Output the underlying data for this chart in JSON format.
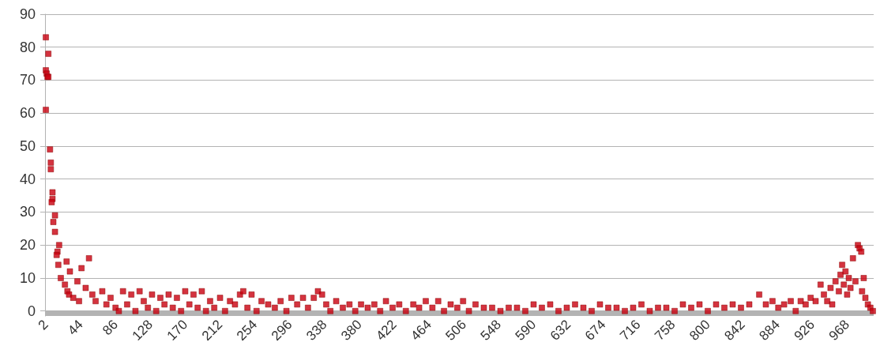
{
  "chart_data": {
    "type": "scatter",
    "marker": "square",
    "grid": "y",
    "xlim": [
      1,
      1000
    ],
    "xticks": [
      2,
      44,
      86,
      128,
      170,
      212,
      254,
      296,
      338,
      380,
      422,
      464,
      506,
      548,
      590,
      632,
      674,
      716,
      758,
      800,
      842,
      884,
      926,
      968
    ],
    "ylim": [
      -1.5,
      90
    ],
    "yticks": [
      0,
      10,
      20,
      30,
      40,
      50,
      60,
      70,
      80,
      90
    ],
    "bands": [
      {
        "axis": "y",
        "from": -1.5,
        "to": 0,
        "color": "#b3b3b3"
      }
    ],
    "series": [
      {
        "color": "#c9000f",
        "x": [
          2,
          2,
          2,
          3,
          4,
          5,
          5,
          7,
          8,
          8,
          10,
          10,
          9,
          13,
          11,
          13,
          18,
          16,
          15,
          27,
          17,
          31,
          20,
          25,
          28,
          30,
          40,
          45,
          54,
          35,
          42,
          50,
          58,
          62,
          70,
          75,
          80,
          86,
          90,
          95,
          100,
          105,
          110,
          115,
          120,
          125,
          130,
          135,
          140,
          145,
          150,
          155,
          160,
          165,
          170,
          175,
          180,
          185,
          190,
          195,
          200,
          205,
          212,
          218,
          224,
          230,
          236,
          240,
          245,
          250,
          256,
          262,
          270,
          278,
          285,
          292,
          298,
          305,
          312,
          318,
          325,
          330,
          335,
          340,
          345,
          352,
          360,
          368,
          375,
          382,
          390,
          398,
          405,
          412,
          420,
          428,
          436,
          445,
          452,
          460,
          468,
          475,
          482,
          490,
          498,
          505,
          512,
          520,
          530,
          540,
          550,
          560,
          570,
          580,
          590,
          600,
          610,
          620,
          630,
          640,
          650,
          660,
          670,
          680,
          690,
          700,
          710,
          720,
          730,
          740,
          750,
          760,
          770,
          780,
          790,
          800,
          810,
          820,
          830,
          840,
          850,
          862,
          870,
          878,
          885,
          892,
          900,
          906,
          912,
          918,
          924,
          930,
          936,
          940,
          944,
          948,
          950,
          954,
          958,
          960,
          962,
          964,
          966,
          968,
          970,
          972,
          975,
          978,
          981,
          983,
          985,
          986,
          988,
          990,
          993,
          996,
          999
        ],
        "values": [
          83,
          73,
          61,
          72,
          71,
          78,
          71,
          49,
          45,
          43,
          36,
          34,
          33,
          29,
          27,
          24,
          20,
          18,
          17,
          15,
          14,
          12,
          10,
          8,
          6,
          5,
          9,
          13,
          16,
          4,
          3,
          7,
          5,
          3,
          6,
          2,
          4,
          1,
          0,
          6,
          2,
          5,
          0,
          6,
          3,
          1,
          5,
          0,
          4,
          2,
          5,
          1,
          4,
          0,
          6,
          2,
          5,
          1,
          6,
          0,
          3,
          1,
          4,
          0,
          3,
          2,
          5,
          6,
          1,
          5,
          0,
          3,
          2,
          1,
          3,
          0,
          4,
          2,
          4,
          1,
          4,
          6,
          5,
          2,
          0,
          3,
          1,
          2,
          0,
          2,
          1,
          2,
          0,
          3,
          1,
          2,
          0,
          2,
          1,
          3,
          1,
          3,
          0,
          2,
          1,
          3,
          0,
          2,
          1,
          1,
          0,
          1,
          1,
          0,
          2,
          1,
          2,
          0,
          1,
          2,
          1,
          0,
          2,
          1,
          1,
          0,
          1,
          2,
          0,
          1,
          1,
          0,
          2,
          1,
          2,
          0,
          2,
          1,
          2,
          1,
          2,
          5,
          2,
          3,
          1,
          2,
          3,
          0,
          3,
          2,
          4,
          3,
          8,
          5,
          3,
          7,
          2,
          9,
          6,
          11,
          14,
          8,
          12,
          5,
          10,
          7,
          16,
          9,
          20,
          19,
          18,
          6,
          10,
          4,
          2,
          1,
          0
        ]
      }
    ]
  }
}
